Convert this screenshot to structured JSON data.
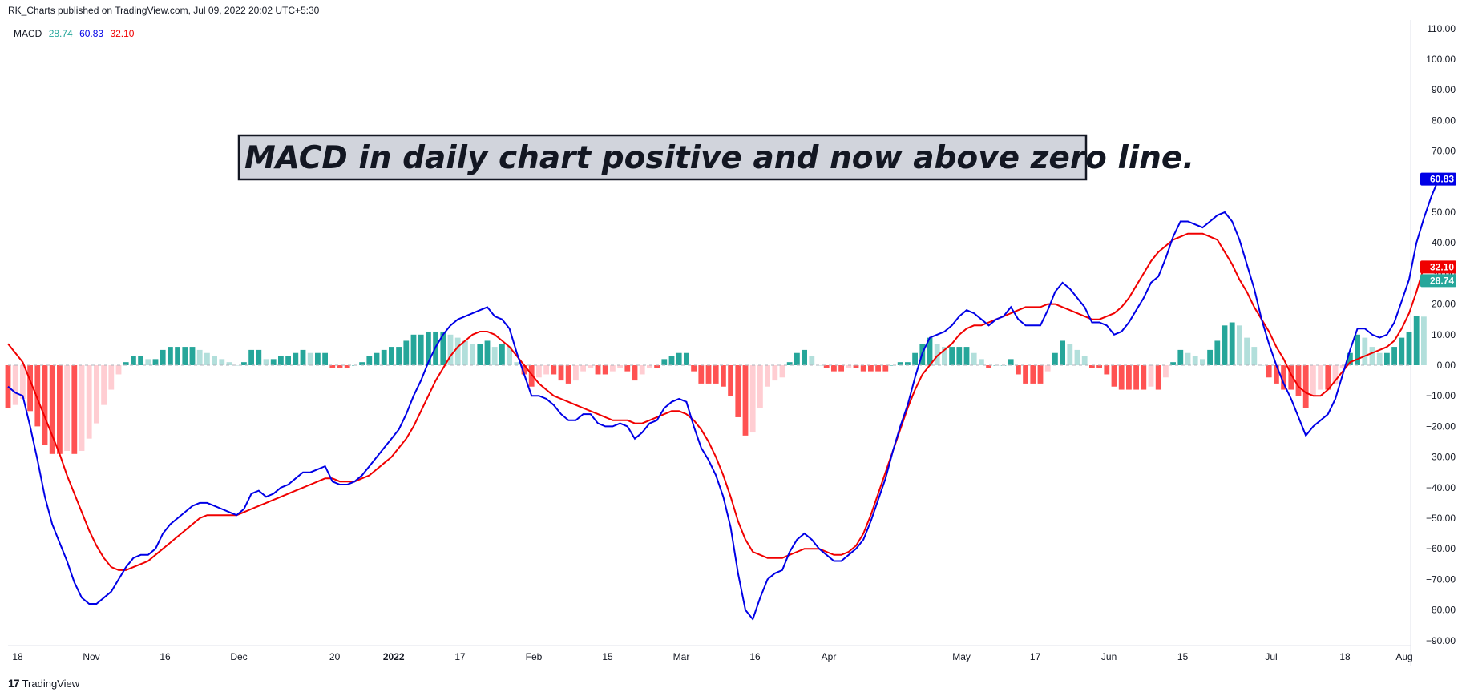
{
  "header": {
    "text": "RK_Charts published on TradingView.com, Jul 09, 2022 20:02 UTC+5:30"
  },
  "legend": {
    "name": "MACD",
    "histogram_value": "28.74",
    "macd_value": "60.83",
    "signal_value": "32.10"
  },
  "footer": {
    "logo": "17",
    "brand": "TradingView"
  },
  "colors": {
    "macd": "#0000e6",
    "signal": "#f00000",
    "hist_pos_strong": "#26a69a",
    "hist_pos_weak": "#b2dfdb",
    "hist_neg_strong": "#ff5252",
    "hist_neg_weak": "#ffcdd2",
    "annotation_bg": "#d1d4dc",
    "zero_line": "#b2b5be"
  },
  "chart_data": {
    "type": "line",
    "title": "",
    "annotation": "MACD in daily chart positive and now above zero line.",
    "ylim": [
      -90,
      110
    ],
    "y_ticks": [
      "110.00",
      "100.00",
      "90.00",
      "80.00",
      "70.00",
      "60.00",
      "50.00",
      "40.00",
      "30.00",
      "20.00",
      "10.00",
      "0.00",
      "−10.00",
      "−20.00",
      "−30.00",
      "−40.00",
      "−50.00",
      "−60.00",
      "−70.00",
      "−80.00",
      "−90.00"
    ],
    "x_ticks": [
      {
        "label": "18",
        "i": 0
      },
      {
        "label": "Nov",
        "i": 10
      },
      {
        "label": "16",
        "i": 20
      },
      {
        "label": "Dec",
        "i": 30
      },
      {
        "label": "20",
        "i": 43
      },
      {
        "label": "2022",
        "i": 51,
        "bold": true
      },
      {
        "label": "17",
        "i": 60
      },
      {
        "label": "Feb",
        "i": 70
      },
      {
        "label": "15",
        "i": 80
      },
      {
        "label": "Mar",
        "i": 90
      },
      {
        "label": "16",
        "i": 100
      },
      {
        "label": "Apr",
        "i": 110
      },
      {
        "label": "May",
        "i": 128
      },
      {
        "label": "17",
        "i": 138
      },
      {
        "label": "Jun",
        "i": 148
      },
      {
        "label": "15",
        "i": 158
      },
      {
        "label": "Jul",
        "i": 170
      },
      {
        "label": "18",
        "i": 180
      },
      {
        "label": "Aug",
        "i": 190
      }
    ],
    "last_values": {
      "macd": 60.83,
      "signal": 32.1,
      "histogram": 28.74
    },
    "macd_series": [
      -7,
      -9,
      -10,
      -20,
      -31,
      -43,
      -52,
      -58,
      -64,
      -71,
      -76,
      -78,
      -78,
      -76,
      -74,
      -70,
      -66,
      -63,
      -62,
      -62,
      -60,
      -55,
      -52,
      -50,
      -48,
      -46,
      -45,
      -45,
      -46,
      -47,
      -48,
      -49,
      -47,
      -42,
      -41,
      -43,
      -42,
      -40,
      -39,
      -37,
      -35,
      -35,
      -34,
      -33,
      -38,
      -39,
      -39,
      -38,
      -36,
      -33,
      -30,
      -27,
      -24,
      -21,
      -16,
      -10,
      -5,
      1,
      6,
      10,
      13,
      15,
      16,
      17,
      18,
      19,
      16,
      15,
      12,
      4,
      -3,
      -10,
      -10,
      -11,
      -13,
      -16,
      -18,
      -18,
      -16,
      -16,
      -19,
      -20,
      -20,
      -19,
      -20,
      -24,
      -22,
      -19,
      -18,
      -14,
      -12,
      -11,
      -12,
      -20,
      -27,
      -31,
      -36,
      -43,
      -53,
      -68,
      -80,
      -83,
      -76,
      -70,
      -68,
      -67,
      -61,
      -57,
      -55,
      -57,
      -60,
      -62,
      -64,
      -64,
      -62,
      -60,
      -57,
      -51,
      -44,
      -37,
      -28,
      -20,
      -13,
      -4,
      4,
      9,
      10,
      11,
      13,
      16,
      18,
      17,
      15,
      13,
      15,
      16,
      19,
      15,
      13,
      13,
      13,
      18,
      24,
      27,
      25,
      22,
      19,
      14,
      14,
      13,
      10,
      11,
      14,
      18,
      22,
      27,
      29,
      35,
      42,
      47,
      47,
      46,
      45,
      47,
      49,
      50,
      47,
      41,
      33,
      25,
      15,
      7,
      0,
      -6,
      -11,
      -17,
      -23,
      -20,
      -18,
      -16,
      -11,
      -3,
      5,
      12,
      12,
      10,
      9,
      10,
      14,
      21,
      28,
      40,
      48,
      55,
      60.83
    ],
    "signal_series": [
      7,
      4,
      1,
      -5,
      -11,
      -17,
      -23,
      -29,
      -36,
      -42,
      -48,
      -54,
      -59,
      -63,
      -66,
      -67,
      -67,
      -66,
      -65,
      -64,
      -62,
      -60,
      -58,
      -56,
      -54,
      -52,
      -50,
      -49,
      -49,
      -49,
      -49,
      -49,
      -48,
      -47,
      -46,
      -45,
      -44,
      -43,
      -42,
      -41,
      -40,
      -39,
      -38,
      -37,
      -37,
      -38,
      -38,
      -38,
      -37,
      -36,
      -34,
      -32,
      -30,
      -27,
      -24,
      -20,
      -15,
      -10,
      -5,
      -1,
      3,
      6,
      8,
      10,
      11,
      11,
      10,
      8,
      6,
      3,
      0,
      -3,
      -6,
      -8,
      -10,
      -11,
      -12,
      -13,
      -14,
      -15,
      -16,
      -17,
      -18,
      -18,
      -18,
      -19,
      -19,
      -18,
      -17,
      -16,
      -15,
      -15,
      -16,
      -18,
      -21,
      -25,
      -30,
      -36,
      -43,
      -51,
      -57,
      -61,
      -62,
      -63,
      -63,
      -63,
      -62,
      -61,
      -60,
      -60,
      -60,
      -61,
      -62,
      -62,
      -61,
      -59,
      -55,
      -49,
      -42,
      -35,
      -28,
      -21,
      -14,
      -8,
      -3,
      0,
      3,
      5,
      7,
      10,
      12,
      13,
      13,
      14,
      15,
      16,
      17,
      18,
      19,
      19,
      19,
      20,
      20,
      19,
      18,
      17,
      16,
      15,
      15,
      16,
      17,
      19,
      22,
      26,
      30,
      34,
      37,
      39,
      41,
      42,
      43,
      43,
      43,
      42,
      41,
      37,
      33,
      28,
      24,
      19,
      15,
      11,
      6,
      2,
      -3,
      -7,
      -9,
      -10,
      -10,
      -8,
      -5,
      -2,
      1,
      2,
      3,
      4,
      5,
      6,
      8,
      12,
      17,
      24,
      32.1
    ]
  }
}
